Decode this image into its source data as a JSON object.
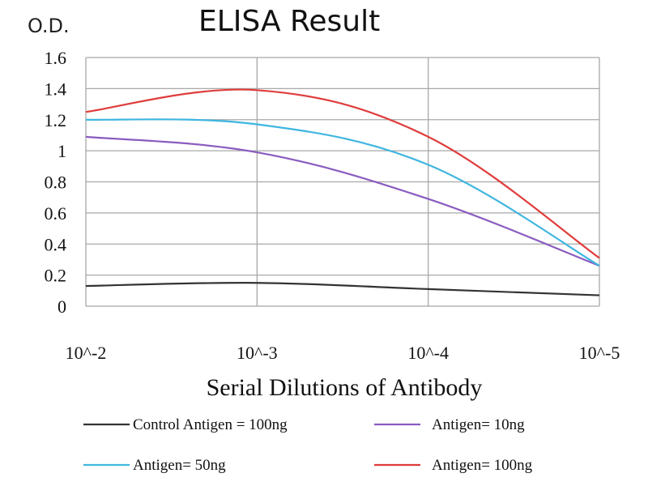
{
  "chart_data": {
    "type": "line",
    "title": "ELISA Result",
    "ylabel": "O.D.",
    "xlabel": "Serial Dilutions of Antibody",
    "categories": [
      "10^-2",
      "10^-3",
      "10^-4",
      "10^-5"
    ],
    "y_ticks": [
      "0",
      "0.2",
      "0.4",
      "0.6",
      "0.8",
      "1",
      "1.2",
      "1.4",
      "1.6"
    ],
    "ylim": [
      0,
      1.6
    ],
    "grid": true,
    "legend_position": "bottom",
    "series": [
      {
        "name": "Control Antigen = 100ng",
        "color": "#333333",
        "values": [
          0.13,
          0.15,
          0.11,
          0.07
        ]
      },
      {
        "name": "Antigen= 10ng",
        "color": "#8a5cc0",
        "values": [
          1.09,
          0.99,
          0.69,
          0.26
        ]
      },
      {
        "name": "Antigen= 50ng",
        "color": "#3fb6e0",
        "values": [
          1.2,
          1.17,
          0.91,
          0.26
        ]
      },
      {
        "name": "Antigen= 100ng",
        "color": "#e03c3c",
        "values": [
          1.25,
          1.39,
          1.09,
          0.31
        ]
      }
    ]
  }
}
